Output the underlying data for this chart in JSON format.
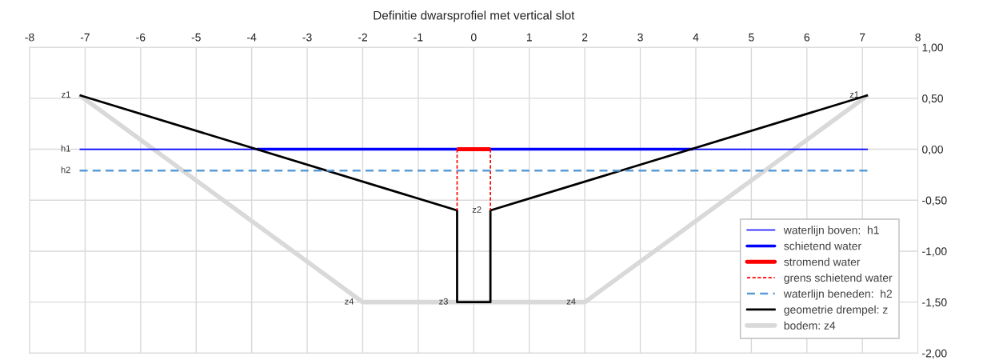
{
  "chart_data": {
    "type": "line",
    "title": "Definitie dwarsprofiel met vertical slot",
    "xlim": [
      -8,
      8
    ],
    "xticks": [
      -8,
      -7,
      -6,
      -5,
      -4,
      -3,
      -2,
      -1,
      0,
      1,
      2,
      3,
      4,
      5,
      6,
      7,
      8
    ],
    "ylim": [
      -2,
      1
    ],
    "yticks": [
      {
        "value": 1,
        "label": "1,00"
      },
      {
        "value": 0.5,
        "label": "0,50"
      },
      {
        "value": 0,
        "label": "0,00"
      },
      {
        "value": -0.5,
        "label": "-0,50"
      },
      {
        "value": -1,
        "label": "-1,00"
      },
      {
        "value": -1.5,
        "label": "-1,50"
      },
      {
        "value": -2,
        "label": "-2,00"
      }
    ],
    "grid": true,
    "legend": "bottom right",
    "series": [
      {
        "name": "waterlijn boven:  h1",
        "color": "#0000ff",
        "x": [
          -7.1,
          7.1
        ],
        "values": [
          0,
          0
        ],
        "line_style": "solid"
      },
      {
        "name": "schietend water",
        "color": "#0000ff",
        "x": [
          -3.91,
          -0.3,
          null,
          0.3,
          3.95
        ],
        "values": [
          0,
          0,
          null,
          0,
          0
        ],
        "line_style": "solid"
      },
      {
        "name": "stromend water",
        "color": "#ff0000",
        "x": [
          -0.3,
          0.3
        ],
        "values": [
          0,
          0
        ],
        "line_style": "solid"
      },
      {
        "name": "grens schietend water",
        "color": "#ff0000",
        "x": [
          -0.3,
          -0.3,
          null,
          0.3,
          0.3
        ],
        "values": [
          0,
          -0.6,
          null,
          0,
          -0.6
        ],
        "line_style": "dotted"
      },
      {
        "name": "waterlijn beneden:  h2",
        "color": "#5b9bd5",
        "x": [
          -7.1,
          7.1
        ],
        "values": [
          -0.21,
          -0.21
        ],
        "line_style": "dashed"
      },
      {
        "name": "geometrie drempel: z",
        "color": "#000000",
        "x": [
          -7.1,
          -0.3,
          -0.3,
          0.3,
          0.3,
          7.1
        ],
        "values": [
          0.53,
          -0.6,
          -1.5,
          -1.5,
          -0.6,
          0.53
        ],
        "line_style": "solid"
      },
      {
        "name": "bodem: z4",
        "color": "#d9d9d9",
        "x": [
          -7.1,
          -2,
          2,
          7.1
        ],
        "values": [
          0.53,
          -1.5,
          -1.5,
          0.53
        ],
        "line_style": "solid"
      }
    ],
    "annotations": [
      {
        "text": "z1",
        "x": -7.1,
        "y": 0.53
      },
      {
        "text": "h1",
        "x": -7.1,
        "y": 0
      },
      {
        "text": "h2",
        "x": -7.1,
        "y": -0.21
      },
      {
        "text": "z2",
        "x": 0.3,
        "y": -0.6
      },
      {
        "text": "z3",
        "x": -0.3,
        "y": -1.5
      },
      {
        "text": "z4",
        "x": -2,
        "y": -1.5
      },
      {
        "text": "z4",
        "x": 2,
        "y": -1.5
      },
      {
        "text": "z1",
        "x": 7.1,
        "y": 0.53
      }
    ]
  }
}
